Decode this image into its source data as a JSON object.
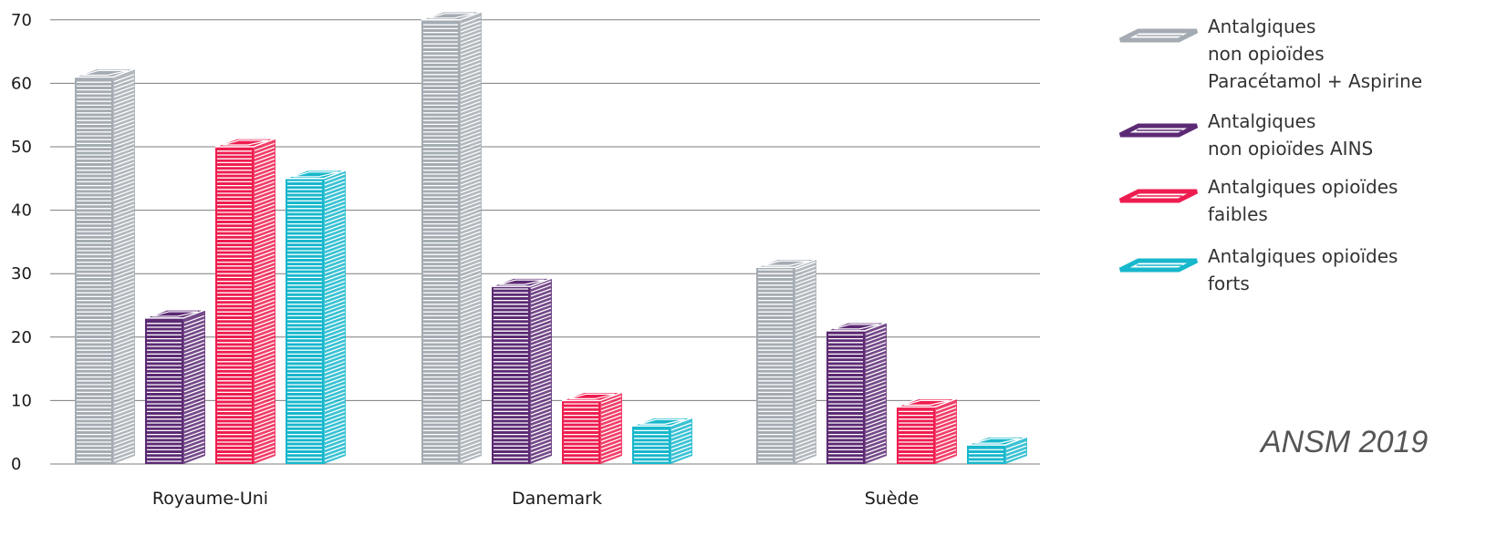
{
  "chart_data": {
    "type": "bar",
    "categories": [
      "Royaume-Uni",
      "Danemark",
      "Suède"
    ],
    "series": [
      {
        "name": "Antalgiques non opioïdes Paracétamol + Aspirine",
        "legend_lines": [
          "Antalgiques",
          "non opioïdes",
          "Paracétamol + Aspirine"
        ],
        "color": "#a4abb3",
        "values": [
          61,
          70,
          31
        ]
      },
      {
        "name": "Antalgiques non opioïdes AINS",
        "legend_lines": [
          "Antalgiques",
          "non opioïdes AINS"
        ],
        "color": "#5c2a74",
        "values": [
          23,
          28,
          21
        ]
      },
      {
        "name": "Antalgiques opioïdes faibles",
        "legend_lines": [
          "Antalgiques opioïdes",
          "faibles"
        ],
        "color": "#ee1d4f",
        "values": [
          50,
          10,
          9
        ]
      },
      {
        "name": "Antalgiques opioïdes forts",
        "legend_lines": [
          "Antalgiques opioïdes",
          "forts"
        ],
        "color": "#17b7cc",
        "values": [
          45,
          6,
          3
        ]
      }
    ],
    "yticks": [
      0,
      10,
      20,
      30,
      40,
      50,
      60,
      70
    ],
    "ylim": [
      0,
      72
    ],
    "grid": true,
    "legend_position": "right",
    "title": "",
    "xlabel": "",
    "ylabel": "",
    "annotation": "ANSM 2019"
  }
}
